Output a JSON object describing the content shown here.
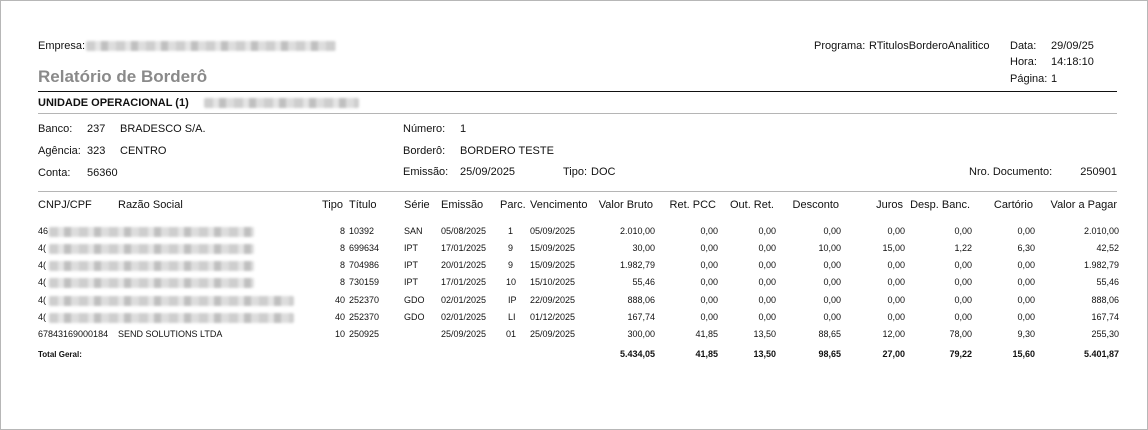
{
  "header": {
    "empresa_label": "Empresa:",
    "programa_label": "Programa:",
    "programa_value": "RTitulosBorderoAnalitico",
    "data_label": "Data:",
    "data_value": "29/09/25",
    "hora_label": "Hora:",
    "hora_value": "14:18:10",
    "pagina_label": "Página:",
    "pagina_value": "1",
    "title": "Relatório de Borderô"
  },
  "unit": {
    "label": "UNIDADE OPERACIONAL (1)"
  },
  "info": {
    "banco_label": "Banco:",
    "banco_code": "237",
    "banco_name": "BRADESCO S/A.",
    "agencia_label": "Agência:",
    "agencia_code": "323",
    "agencia_name": "CENTRO",
    "conta_label": "Conta:",
    "conta_value": "56360",
    "numero_label": "Número:",
    "numero_value": "1",
    "bordero_label": "Borderô:",
    "bordero_value": "BORDERO TESTE",
    "emissao_label": "Emissão:",
    "emissao_value": "25/09/2025",
    "tipo_label": "Tipo:",
    "tipo_value": "DOC",
    "nrodoc_label": "Nro. Documento:",
    "nrodoc_value": "250901"
  },
  "table": {
    "headers": {
      "cnpj": "CNPJ/CPF",
      "razao": "Razão Social",
      "tipo": "Tipo",
      "titulo": "Título",
      "serie": "Série",
      "emissao": "Emissão",
      "parc": "Parc.",
      "vencimento": "Vencimento",
      "valor_bruto": "Valor Bruto",
      "ret_pcc": "Ret. PCC",
      "out_ret": "Out. Ret.",
      "desconto": "Desconto",
      "juros": "Juros",
      "desp_banc": "Desp. Banc.",
      "cartorio": "Cartório",
      "valor_pagar": "Valor a Pagar"
    },
    "rows": [
      {
        "cnpj": "46",
        "razao": "",
        "tipo": "8",
        "titulo": "10392",
        "serie": "SAN",
        "emissao": "05/08/2025",
        "parc": "1",
        "vencimento": "05/09/2025",
        "valor_bruto": "2.010,00",
        "ret_pcc": "0,00",
        "out_ret": "0,00",
        "desconto": "0,00",
        "juros": "0,00",
        "desp_banc": "0,00",
        "cartorio": "0,00",
        "valor_pagar": "2.010,00"
      },
      {
        "cnpj": "4(",
        "razao": "",
        "tipo": "8",
        "titulo": "699634",
        "serie": "IPT",
        "emissao": "17/01/2025",
        "parc": "9",
        "vencimento": "15/09/2025",
        "valor_bruto": "30,00",
        "ret_pcc": "0,00",
        "out_ret": "0,00",
        "desconto": "10,00",
        "juros": "15,00",
        "desp_banc": "1,22",
        "cartorio": "6,30",
        "valor_pagar": "42,52"
      },
      {
        "cnpj": "4(",
        "razao": "",
        "tipo": "8",
        "titulo": "704986",
        "serie": "IPT",
        "emissao": "20/01/2025",
        "parc": "9",
        "vencimento": "15/09/2025",
        "valor_bruto": "1.982,79",
        "ret_pcc": "0,00",
        "out_ret": "0,00",
        "desconto": "0,00",
        "juros": "0,00",
        "desp_banc": "0,00",
        "cartorio": "0,00",
        "valor_pagar": "1.982,79"
      },
      {
        "cnpj": "4(",
        "razao": "",
        "tipo": "8",
        "titulo": "730159",
        "serie": "IPT",
        "emissao": "17/01/2025",
        "parc": "10",
        "vencimento": "15/10/2025",
        "valor_bruto": "55,46",
        "ret_pcc": "0,00",
        "out_ret": "0,00",
        "desconto": "0,00",
        "juros": "0,00",
        "desp_banc": "0,00",
        "cartorio": "0,00",
        "valor_pagar": "55,46"
      },
      {
        "cnpj": "4(",
        "razao": "",
        "tipo": "40",
        "titulo": "252370",
        "serie": "GDO",
        "emissao": "02/01/2025",
        "parc": "IP",
        "vencimento": "22/09/2025",
        "valor_bruto": "888,06",
        "ret_pcc": "0,00",
        "out_ret": "0,00",
        "desconto": "0,00",
        "juros": "0,00",
        "desp_banc": "0,00",
        "cartorio": "0,00",
        "valor_pagar": "888,06"
      },
      {
        "cnpj": "4(",
        "razao": "",
        "tipo": "40",
        "titulo": "252370",
        "serie": "GDO",
        "emissao": "02/01/2025",
        "parc": "LI",
        "vencimento": "01/12/2025",
        "valor_bruto": "167,74",
        "ret_pcc": "0,00",
        "out_ret": "0,00",
        "desconto": "0,00",
        "juros": "0,00",
        "desp_banc": "0,00",
        "cartorio": "0,00",
        "valor_pagar": "167,74"
      },
      {
        "cnpj": "67843169000184",
        "razao": "SEND SOLUTIONS LTDA",
        "tipo": "10",
        "titulo": "250925",
        "serie": "",
        "emissao": "25/09/2025",
        "parc": "01",
        "vencimento": "25/09/2025",
        "valor_bruto": "300,00",
        "ret_pcc": "41,85",
        "out_ret": "13,50",
        "desconto": "88,65",
        "juros": "12,00",
        "desp_banc": "78,00",
        "cartorio": "9,30",
        "valor_pagar": "255,30"
      }
    ],
    "total": {
      "label": "Total Geral:",
      "valor_bruto": "5.434,05",
      "ret_pcc": "41,85",
      "out_ret": "13,50",
      "desconto": "98,65",
      "juros": "27,00",
      "desp_banc": "79,22",
      "cartorio": "15,60",
      "valor_pagar": "5.401,87"
    }
  }
}
